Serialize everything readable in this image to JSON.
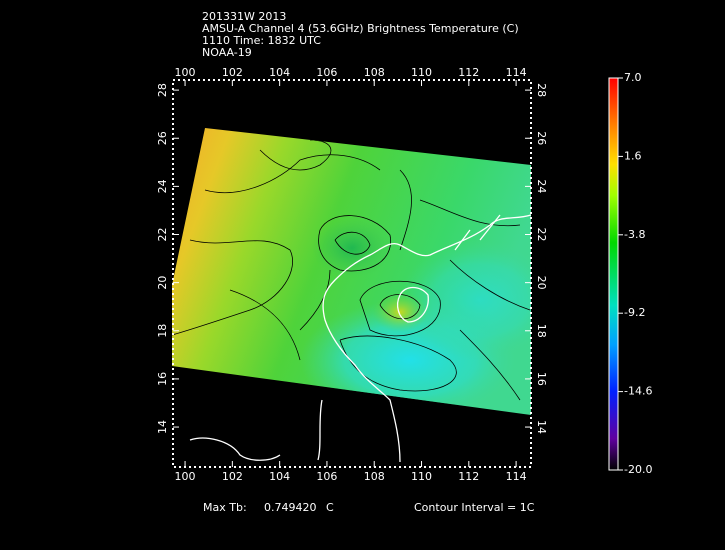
{
  "header": {
    "lines": [
      "201331W 2013",
      "AMSU-A Channel 4 (53.6GHz) Brightness Temperature (C)",
      "1110 Time: 1832 UTC",
      "NOAA-19"
    ]
  },
  "map": {
    "xlim": [
      99.49,
      114.63
    ],
    "ylim": [
      12.34,
      28.42
    ],
    "lon_ticks": [
      100,
      102,
      104,
      106,
      108,
      110,
      112,
      114
    ],
    "lat_ticks": [
      14,
      16,
      18,
      20,
      22,
      24,
      26,
      28
    ]
  },
  "colorbar": {
    "labels": [
      "7.0",
      "1.6",
      "-3.8",
      "-9.2",
      "-14.6",
      "-20.0"
    ]
  },
  "footer": {
    "max_label": "Max Tb:",
    "max_value": "0.749420",
    "max_unit": "C",
    "contour": "Contour Interval = 1C"
  }
}
